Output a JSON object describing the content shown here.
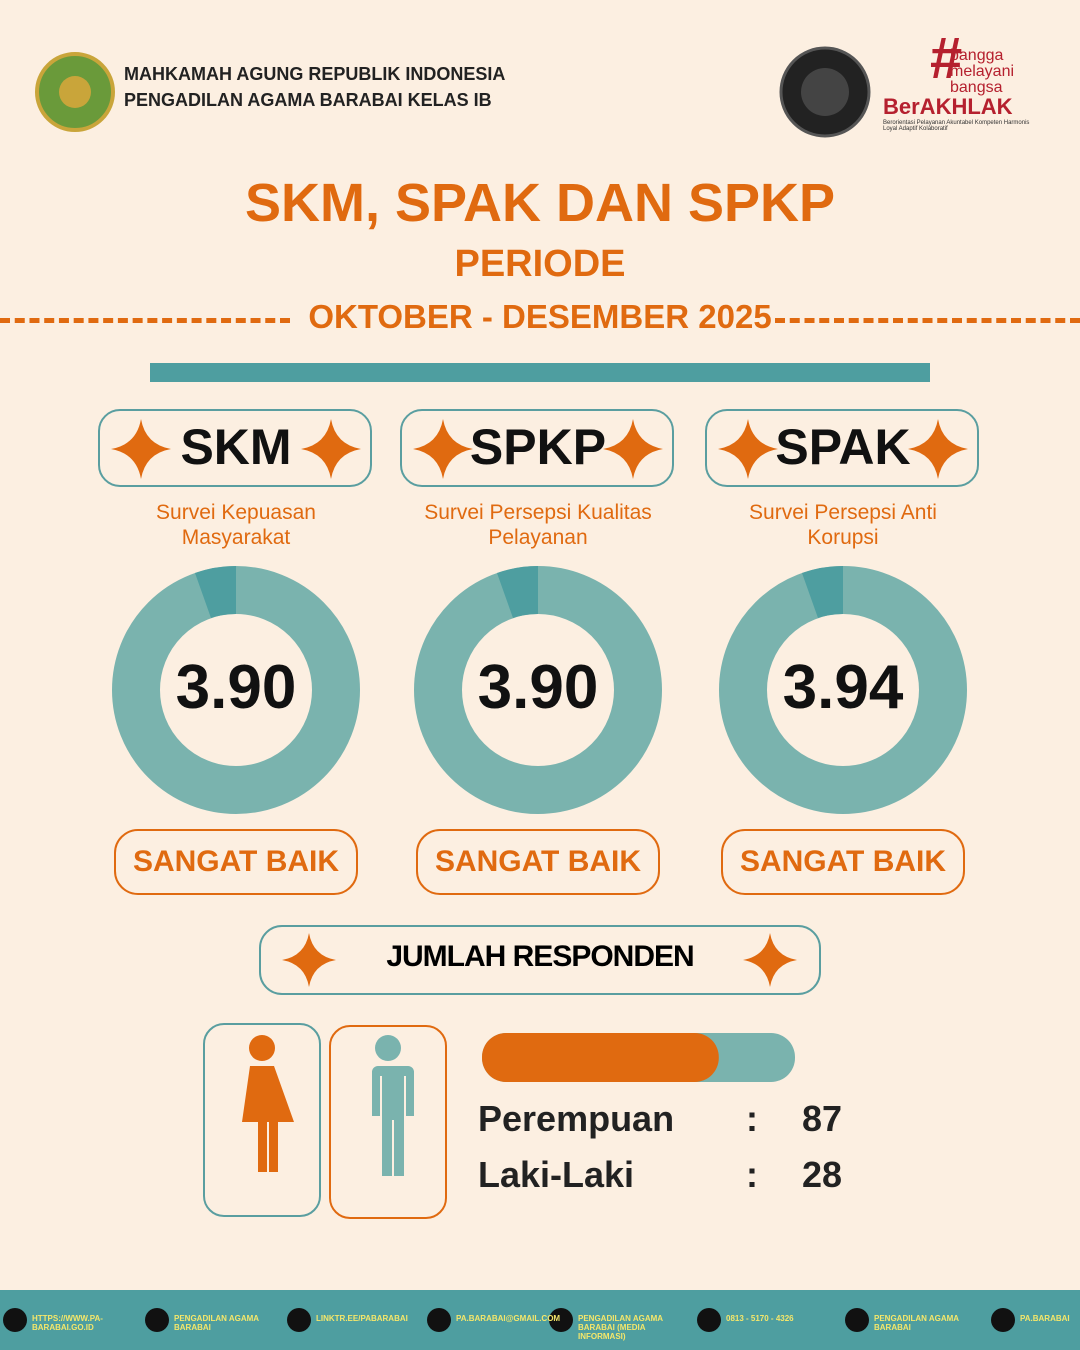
{
  "header": {
    "org_line1": "MAHKAMAH AGUNG REPUBLIK INDONESIA",
    "org_line2": "PENGADILAN AGAMA BARABAI KELAS IB",
    "badge": [
      "bangga",
      "melayani",
      "bangsa"
    ],
    "brand": "BerAKHLAK",
    "brand_sub": "Berorientasi Pelayanan Akuntabel Kompeten Harmonis Loyal Adaptif Kolaboratif"
  },
  "title": "SKM, SPAK DAN SPKP",
  "subtitle": "PERIODE",
  "period": "OKTOBER - DESEMBER 2025",
  "surveys": [
    {
      "code": "SKM",
      "name": "Survei Kepuasan Masyarakat",
      "score": "3.90",
      "rating": "SANGAT BAIK"
    },
    {
      "code": "SPKP",
      "name": "Survei Persepsi Kualitas Pelayanan",
      "score": "3.90",
      "rating": "SANGAT BAIK"
    },
    {
      "code": "SPAK",
      "name": "Survei Persepsi Anti Korupsi",
      "score": "3.94",
      "rating": "SANGAT BAIK"
    }
  ],
  "respondents": {
    "heading": "JUMLAH RESPONDEN",
    "rows": [
      {
        "label": "Perempuan",
        "sep": ":",
        "count": 87
      },
      {
        "label": "Laki-Laki",
        "sep": ":",
        "count": 28
      }
    ]
  },
  "footer": [
    "HTTPS://WWW.PA-BARABAI.GO.ID",
    "PENGADILAN AGAMA BARABAI",
    "LINKTR.EE/PABARABAI",
    "PA.BARABAI@GMAIL.COM",
    "PENGADILAN AGAMA BARABAI (MEDIA INFORMASI)",
    "0813 - 5170 - 4326",
    "PENGADILAN AGAMA BARABAI",
    "PA.BARABAI"
  ]
}
